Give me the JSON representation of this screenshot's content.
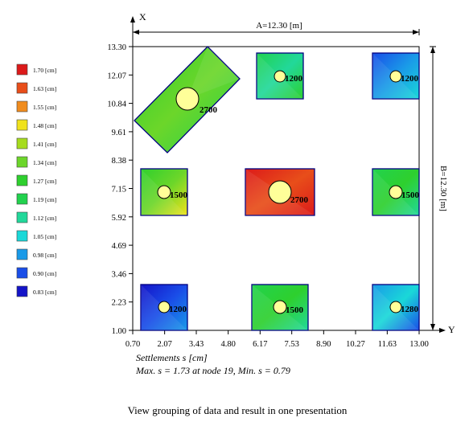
{
  "chart_data": {
    "type": "heatmap",
    "x_axis": {
      "label": "X",
      "range": [
        0.7,
        13.3
      ],
      "ticks": [
        "1.00",
        "2.23",
        "3.46",
        "4.69",
        "5.92",
        "7.15",
        "8.38",
        "9.61",
        "10.84",
        "12.07",
        "13.30"
      ]
    },
    "y_axis": {
      "label": "Y",
      "range": [
        0.7,
        13.3
      ],
      "ticks": [
        "0.70",
        "2.07",
        "3.43",
        "4.80",
        "6.17",
        "7.53",
        "8.90",
        "10.27",
        "11.63",
        "13.00"
      ]
    },
    "dimension_a": "A=12.30 [m]",
    "dimension_b": "B=12.30 [m]",
    "subtitle_units": "Settlements s [cm]",
    "subtitle_stats": "Max. s = 1.73 at node 19, Min. s = 0.79",
    "legend": [
      {
        "label": "1.70 [cm]",
        "color": "#dc1a1a"
      },
      {
        "label": "1.63 [cm]",
        "color": "#e84e1a"
      },
      {
        "label": "1.55 [cm]",
        "color": "#f08c1e"
      },
      {
        "label": "1.48 [cm]",
        "color": "#f0e21c"
      },
      {
        "label": "1.41 [cm]",
        "color": "#a6dc1e"
      },
      {
        "label": "1.34 [cm]",
        "color": "#6cd62a"
      },
      {
        "label": "1.27 [cm]",
        "color": "#2ed02e"
      },
      {
        "label": "1.19 [cm]",
        "color": "#22d24e"
      },
      {
        "label": "1.12 [cm]",
        "color": "#22d89a"
      },
      {
        "label": "1.05 [cm]",
        "color": "#1ad8d8"
      },
      {
        "label": "0.98 [cm]",
        "color": "#1a9ae8"
      },
      {
        "label": "0.90 [cm]",
        "color": "#1a4ee8"
      },
      {
        "label": "0.83 [cm]",
        "color": "#1414c8"
      }
    ],
    "footings": [
      {
        "cx": 7.0,
        "cy": 13.2,
        "w": 1.8,
        "h": 1.8,
        "angle": 0,
        "load": "1200",
        "colors": [
          "#22d24e",
          "#22d89a",
          "#2ed02e"
        ]
      },
      {
        "cx": 12.0,
        "cy": 13.2,
        "w": 1.8,
        "h": 1.8,
        "angle": 0,
        "load": "1200",
        "colors": [
          "#1a4ee8",
          "#1a9ae8",
          "#1ad8d8"
        ]
      },
      {
        "cx": 3.0,
        "cy": 9.6,
        "w": 1.8,
        "h": 1.8,
        "angle": 0,
        "load": "1500",
        "colors": [
          "#2ed02e",
          "#6cd62a",
          "#f0e21c"
        ]
      },
      {
        "cx": 6.8,
        "cy": 9.3,
        "w": 2.7,
        "h": 1.8,
        "angle": 0,
        "load": "2700",
        "colors": [
          "#dc1a1a",
          "#e84e1a",
          "#dc1a1a"
        ]
      },
      {
        "cx": 12.0,
        "cy": 9.6,
        "w": 1.8,
        "h": 1.8,
        "angle": 0,
        "load": "1500",
        "colors": [
          "#22d24e",
          "#2ed02e",
          "#22d89a"
        ]
      },
      {
        "cx": 3.0,
        "cy": 3.9,
        "w": 1.8,
        "h": 1.8,
        "angle": 0,
        "load": "1200",
        "colors": [
          "#1414c8",
          "#1a4ee8",
          "#1a9ae8"
        ]
      },
      {
        "cx": 7.0,
        "cy": 4.0,
        "w": 2.2,
        "h": 1.8,
        "angle": 0,
        "load": "1500",
        "colors": [
          "#22d24e",
          "#2ed02e",
          "#22d89a"
        ]
      },
      {
        "cx": 12.0,
        "cy": 3.9,
        "w": 1.8,
        "h": 1.8,
        "angle": 0,
        "load": "1280",
        "colors": [
          "#1a9ae8",
          "#1ad8d8",
          "#1a4ee8"
        ]
      }
    ],
    "rotated_footing": {
      "load": "2700",
      "colors": [
        "#2ed02e",
        "#6cd62a",
        "#22d24e"
      ]
    }
  },
  "caption": "View grouping of data and result in one presentation"
}
